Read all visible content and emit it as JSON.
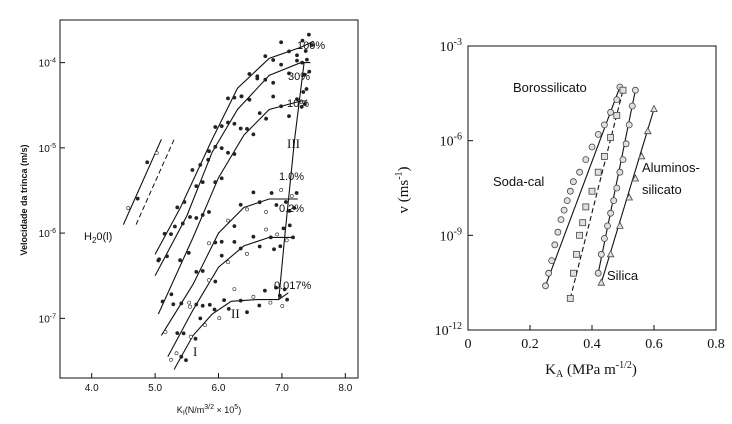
{
  "chart_data": [
    {
      "type": "scatter",
      "title": "",
      "xlabel": "K",
      "xlabel_sub": "I",
      "xlabel_rest": "(N/m",
      "xlabel_sup": "3/2",
      "xlabel_end": " × 10",
      "xlabel_sup2": "5",
      "xlabel_close": ")",
      "ylabel": "Velocidade da trinca (m/s)",
      "xlim": [
        3.5,
        8.2
      ],
      "ylim_log10": [
        -7.7,
        -3.5
      ],
      "x_ticks": [
        "4.0",
        "5.0",
        "6.0",
        "7.0",
        "8.0"
      ],
      "x_tick_values": [
        4,
        5,
        6,
        7,
        8
      ],
      "y_ticks": [
        {
          "base": "10",
          "exp": "-4",
          "log10": -4
        },
        {
          "base": "10",
          "exp": "-5",
          "log10": -5
        },
        {
          "base": "10",
          "exp": "-6",
          "log10": -6
        },
        {
          "base": "10",
          "exp": "-7",
          "log10": -7
        }
      ],
      "grid": false,
      "curve_labels": [
        "100%",
        "30%",
        "10%",
        "1.0%",
        "0.2%",
        "0.017%",
        "H",
        "2",
        "0(l)"
      ],
      "region_labels": [
        "I",
        "II",
        "III"
      ],
      "series": [
        {
          "name": "100%",
          "x": [
            5.0,
            5.4,
            5.9,
            6.3,
            6.8,
            7.3,
            7.5
          ],
          "y": [
            -6.25,
            -5.7,
            -4.9,
            -4.3,
            -3.95,
            -3.82,
            -3.75
          ]
        },
        {
          "name": "30%",
          "x": [
            5.0,
            5.5,
            5.9,
            6.3,
            6.8,
            7.3,
            7.45
          ],
          "y": [
            -6.5,
            -5.8,
            -5.05,
            -4.55,
            -4.15,
            -4.0,
            -4.0
          ]
        },
        {
          "name": "10%",
          "x": [
            5.05,
            5.6,
            6.0,
            6.4,
            6.8,
            7.3,
            7.4
          ],
          "y": [
            -6.95,
            -6.05,
            -5.35,
            -4.85,
            -4.55,
            -4.45,
            -4.45
          ]
        },
        {
          "name": "1.0%",
          "x": [
            5.1,
            5.6,
            6.0,
            6.4,
            6.8,
            7.1,
            7.25
          ],
          "y": [
            -7.2,
            -6.6,
            -6.0,
            -5.7,
            -5.6,
            -5.6,
            -5.6
          ]
        },
        {
          "name": "0.2%",
          "x": [
            5.2,
            5.6,
            6.0,
            6.4,
            6.8,
            7.0,
            7.2
          ],
          "y": [
            -7.45,
            -6.9,
            -6.4,
            -6.15,
            -6.05,
            -6.05,
            -6.05
          ]
        },
        {
          "name": "0.017%",
          "x": [
            5.3,
            5.6,
            5.9,
            6.2,
            6.6,
            6.95,
            7.1
          ],
          "y": [
            -7.6,
            -7.2,
            -6.95,
            -6.8,
            -6.78,
            -6.78,
            -6.7
          ]
        },
        {
          "name": "H2O(l)",
          "x": [
            4.5,
            5.1
          ],
          "y": [
            -5.9,
            -4.9
          ]
        }
      ]
    },
    {
      "type": "scatter",
      "title": "",
      "xlabel": "K",
      "xlabel_sub": "A",
      "xlabel_rest": " (MPa m",
      "xlabel_sup": "-1/2",
      "xlabel_close": ")",
      "ylabel": "v (ms",
      "ylabel_sup": "-1",
      "ylabel_close": ")",
      "xlim": [
        0,
        0.8
      ],
      "ylim_log10": [
        -12,
        -3
      ],
      "x_ticks": [
        "0",
        "0.2",
        "0.4",
        "0.6",
        "0.8"
      ],
      "x_tick_values": [
        0,
        0.2,
        0.4,
        0.6,
        0.8
      ],
      "y_ticks": [
        {
          "base": "10",
          "exp": "-3",
          "log10": -3
        },
        {
          "base": "10",
          "exp": "-6",
          "log10": -6
        },
        {
          "base": "10",
          "exp": "-9",
          "log10": -9
        },
        {
          "base": "10",
          "exp": "-12",
          "log10": -12
        }
      ],
      "grid": false,
      "series": [
        {
          "name": "Borossilicato",
          "marker": "circle",
          "x": [
            0.25,
            0.26,
            0.27,
            0.28,
            0.29,
            0.3,
            0.31,
            0.32,
            0.33,
            0.34,
            0.36,
            0.38,
            0.4,
            0.42,
            0.44,
            0.46,
            0.48,
            0.49
          ],
          "y": [
            -10.6,
            -10.2,
            -9.8,
            -9.3,
            -8.9,
            -8.5,
            -8.2,
            -7.9,
            -7.6,
            -7.3,
            -7.0,
            -6.6,
            -6.2,
            -5.8,
            -5.5,
            -5.1,
            -4.7,
            -4.3
          ]
        },
        {
          "name": "Soda-cal",
          "marker": "square",
          "x": [
            0.33,
            0.34,
            0.35,
            0.36,
            0.37,
            0.38,
            0.4,
            0.42,
            0.44,
            0.46,
            0.48,
            0.5
          ],
          "y": [
            -11.0,
            -10.2,
            -9.6,
            -9.0,
            -8.6,
            -8.1,
            -7.6,
            -7.0,
            -6.5,
            -5.9,
            -5.2,
            -4.4
          ]
        },
        {
          "name": "Aluminossilicato",
          "marker": "circle",
          "x": [
            0.42,
            0.43,
            0.44,
            0.45,
            0.46,
            0.47,
            0.48,
            0.49,
            0.5,
            0.51,
            0.52,
            0.53,
            0.54
          ],
          "y": [
            -10.2,
            -9.6,
            -9.1,
            -8.7,
            -8.3,
            -7.9,
            -7.5,
            -7.0,
            -6.6,
            -6.1,
            -5.5,
            -4.9,
            -4.4
          ]
        },
        {
          "name": "Silica",
          "marker": "triangle",
          "x": [
            0.43,
            0.46,
            0.49,
            0.52,
            0.54,
            0.56,
            0.58,
            0.6
          ],
          "y": [
            -10.5,
            -9.6,
            -8.7,
            -7.8,
            -7.2,
            -6.5,
            -5.7,
            -5.0
          ]
        }
      ],
      "series_labels": {
        "boro": "Borossilicato",
        "soda": "Soda-cal",
        "alum1": "Aluminos-",
        "alum2": "silicato",
        "silica": "Silica"
      }
    }
  ]
}
